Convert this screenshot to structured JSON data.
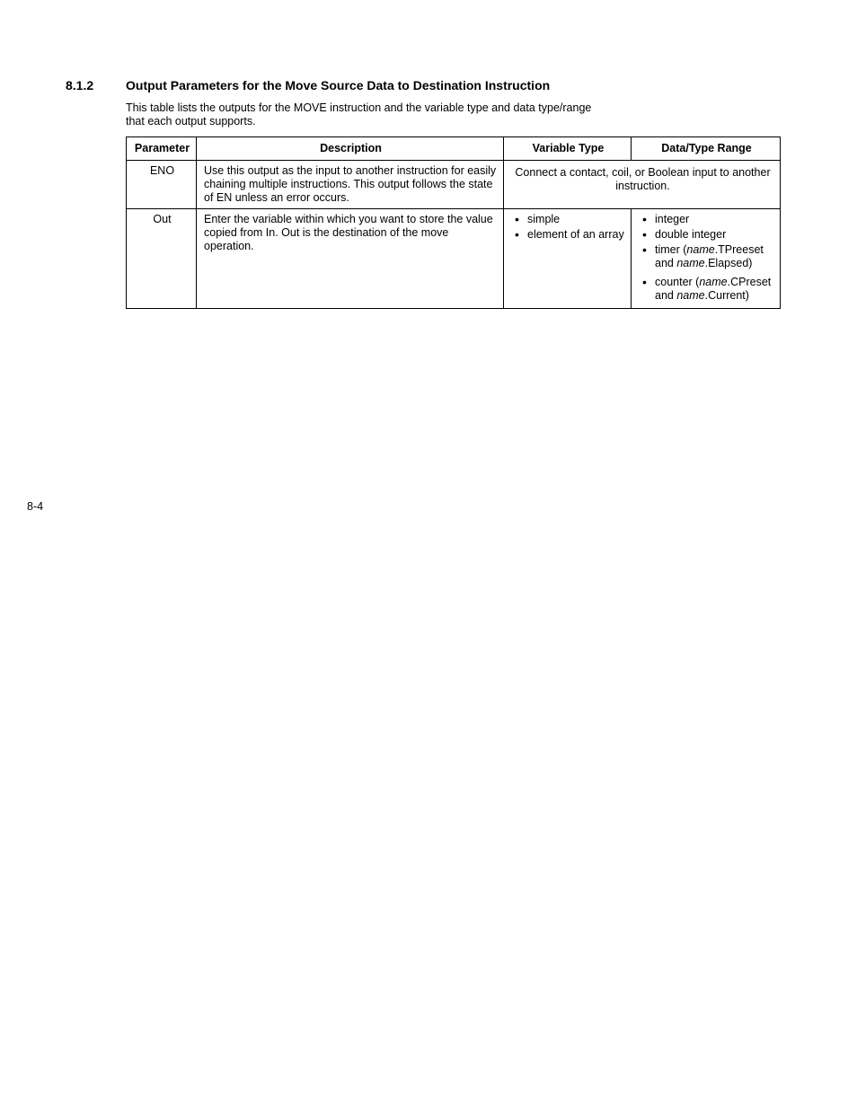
{
  "section_number": "8.1.2",
  "heading": "Output Parameters for the Move Source Data to Destination Instruction",
  "intro": "This table lists the outputs for the MOVE instruction and the variable type and data type/range that each output supports.",
  "table": {
    "headers": [
      "Parameter",
      "Description",
      "Variable Type",
      "Data/Type Range"
    ],
    "row_eno": {
      "param": "ENO",
      "desc": "Use this output as the input to another instruction for easily chaining multiple instructions. This output follows the state of EN unless an error occurs.",
      "spanned": "Connect a contact, coil, or Boolean input to another instruction."
    },
    "row_out": {
      "param": "Out",
      "desc": "Enter the variable within which you want to store the value copied from In. Out is the destination of the move operation.",
      "var_types": [
        "simple",
        "element of an array"
      ],
      "ranges": {
        "r0": "integer",
        "r1": "double integer",
        "r2_pre": "timer (",
        "r2_i1": "name",
        "r2_mid1": ".TPreeset and ",
        "r2_i2": "name",
        "r2_post": ".Elapsed)",
        "r3_pre": "counter (",
        "r3_i1": "name",
        "r3_mid1": ".CPreset and ",
        "r3_i2": "name",
        "r3_post": ".Current)"
      }
    }
  },
  "page_marker": "8-4"
}
